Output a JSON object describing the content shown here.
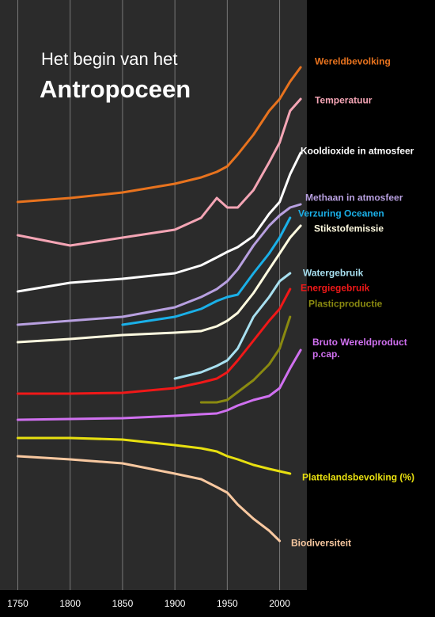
{
  "chart_data": {
    "type": "line",
    "title": "Het begin van het",
    "subtitle": "Antropoceen",
    "x": [
      1750,
      1800,
      1850,
      1900,
      1925,
      1940,
      1950,
      1960,
      1975,
      1990,
      2000,
      2010,
      2020
    ],
    "xlim": [
      1733,
      2026
    ],
    "xticks": [
      1750,
      1800,
      1850,
      1900,
      1950,
      2000
    ],
    "ylim": [
      0,
      745
    ],
    "grid": true,
    "series": [
      {
        "name": "Wereldbevolking",
        "color": "#e8731e",
        "values": [
          490,
          495,
          502,
          513,
          521,
          528,
          535,
          550,
          575,
          605,
          620,
          642,
          660
        ]
      },
      {
        "name": "Temperatuur",
        "color": "#f4a5b5",
        "values": [
          448,
          435,
          445,
          455,
          470,
          495,
          483,
          483,
          505,
          540,
          565,
          605,
          620
        ]
      },
      {
        "name": "Kooldioxide in atmosfeer",
        "color": "#ffffff",
        "values": [
          377,
          388,
          393,
          400,
          410,
          420,
          427,
          433,
          447,
          475,
          490,
          525,
          552
        ]
      },
      {
        "name": "Methaan in atmosfeer",
        "color": "#b8a0e0",
        "values": [
          335,
          340,
          345,
          357,
          370,
          380,
          390,
          405,
          435,
          460,
          473,
          483,
          487
        ]
      },
      {
        "name": "Verzuring Oceanen",
        "color": "#1ab0e8",
        "values": [
          null,
          null,
          335,
          345,
          355,
          365,
          370,
          373,
          400,
          425,
          445,
          470,
          null
        ]
      },
      {
        "name": "Stikstofemissie",
        "color": "#fffbe0",
        "values": [
          313,
          317,
          322,
          325,
          327,
          333,
          340,
          350,
          375,
          405,
          425,
          445,
          460
        ]
      },
      {
        "name": "Watergebruik",
        "color": "#a8e0f0",
        "values": [
          null,
          null,
          null,
          267,
          275,
          283,
          290,
          305,
          345,
          370,
          390,
          400,
          null
        ]
      },
      {
        "name": "Energiegebruik",
        "color": "#f01818",
        "values": [
          248,
          248,
          249,
          255,
          262,
          267,
          275,
          290,
          315,
          340,
          355,
          380,
          null
        ]
      },
      {
        "name": "Plasticproductie",
        "color": "#8a8a10",
        "values": [
          null,
          null,
          null,
          null,
          237,
          237,
          240,
          250,
          265,
          285,
          305,
          345,
          null
        ]
      },
      {
        "name": "Bruto Wereldproduct p.cap.",
        "color": "#d070f0",
        "values": [
          215,
          216,
          217,
          220,
          222,
          223,
          227,
          233,
          240,
          245,
          255,
          280,
          303
        ]
      },
      {
        "name": "Plattelandsbevolking (%)",
        "color": "#e8e010",
        "values": [
          192,
          192,
          190,
          183,
          179,
          175,
          169,
          165,
          158,
          153,
          150,
          147,
          null
        ]
      },
      {
        "name": "Biodiversiteit",
        "color": "#f8c8a0",
        "values": [
          169,
          165,
          160,
          147,
          140,
          130,
          123,
          108,
          90,
          75,
          62,
          null,
          null
        ]
      }
    ]
  }
}
